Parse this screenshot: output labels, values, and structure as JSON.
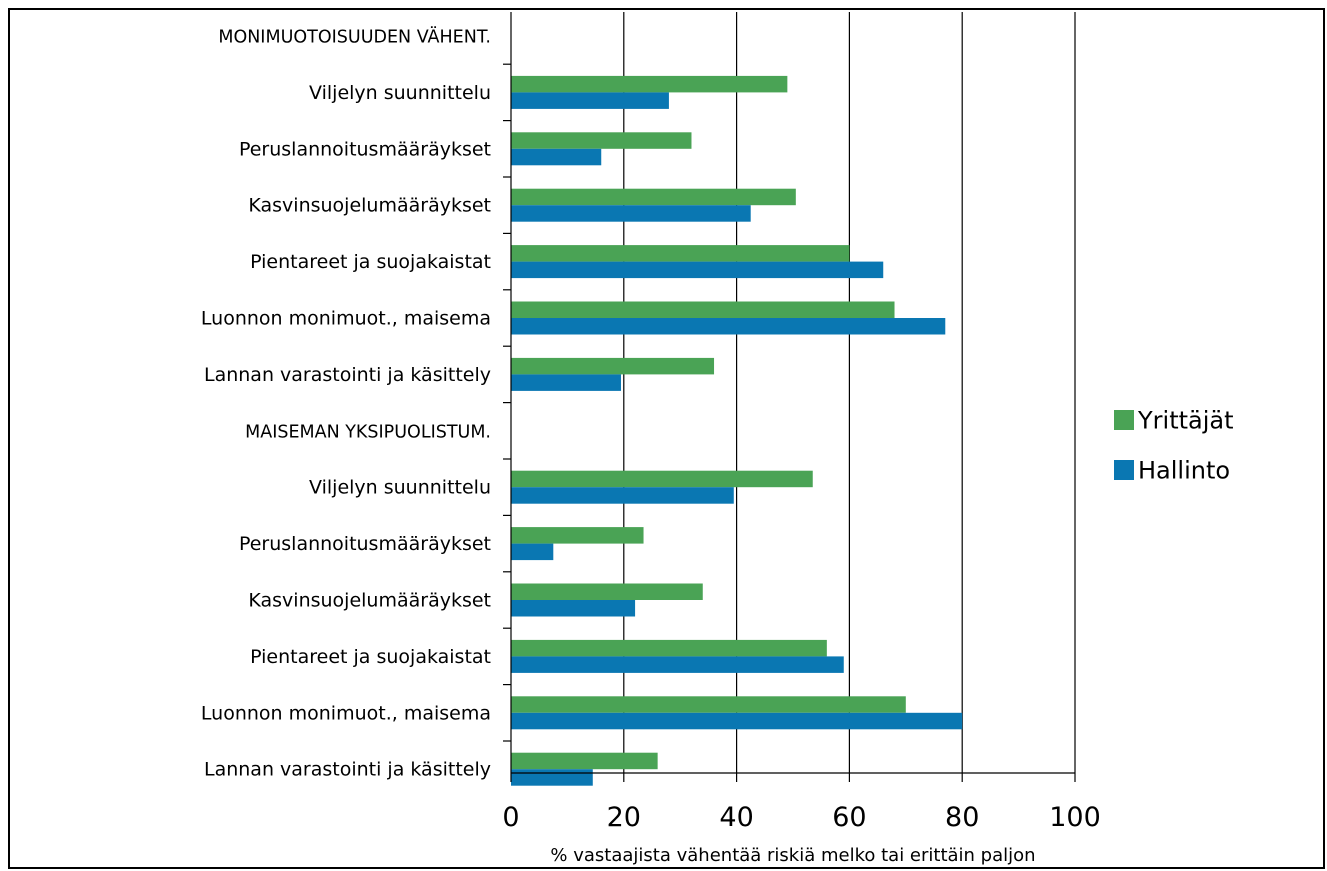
{
  "chart_data": {
    "type": "bar",
    "orientation": "horizontal",
    "title": "",
    "xlabel": "% vastaajista vähentää riskiä melko tai erittäin paljon",
    "ylabel": "",
    "xlim": [
      0,
      100
    ],
    "x_ticks": [
      "0",
      "20",
      "40",
      "60",
      "80",
      "100"
    ],
    "grid": "vertical",
    "legend_position": "right",
    "categories": [
      "MONIMUOTOISUUDEN VÄHENT.",
      "Viljelyn suunnittelu",
      "Peruslannoitusmääräykset",
      "Kasvinsuojelumääräykset",
      "Pientareet ja suojakaistat",
      "Luonnon monimuot., maisema",
      "Lannan varastointi ja käsittely",
      "MAISEMAN YKSIPUOLISTUM.",
      "Viljelyn suunnittelu",
      "Peruslannoitusmääräykset",
      "Kasvinsuojelumääräykset",
      "Pientareet ja suojakaistat",
      "Luonnon monimuot., maisema",
      "Lannan varastointi ja käsittely"
    ],
    "group_headers": [
      0,
      7
    ],
    "series": [
      {
        "name": "Yrittäjät",
        "color": "#4aa355",
        "values": [
          null,
          49,
          32,
          50.5,
          60,
          68,
          36,
          null,
          53.5,
          23.5,
          34,
          56,
          70,
          26
        ]
      },
      {
        "name": "Hallinto",
        "color": "#0a77b2",
        "values": [
          null,
          28,
          16,
          42.5,
          66,
          77,
          19.5,
          null,
          39.5,
          7.5,
          22,
          59,
          80,
          14.5
        ]
      }
    ]
  }
}
